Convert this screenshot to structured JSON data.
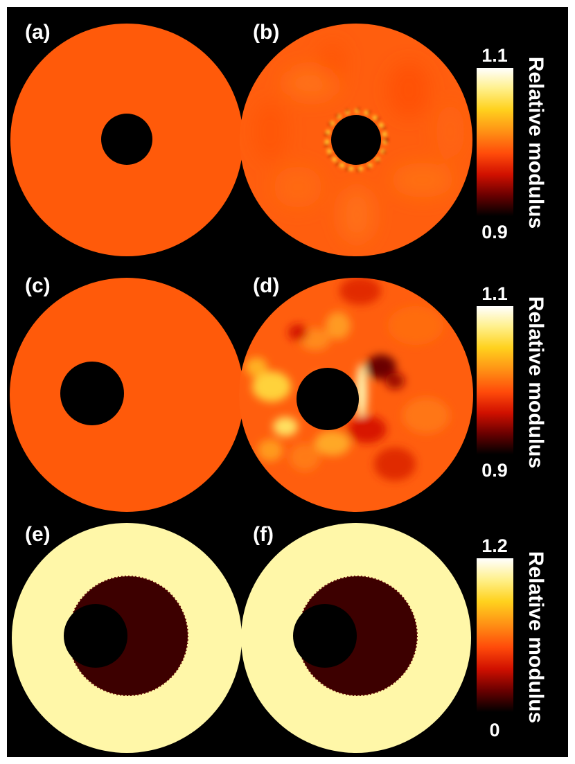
{
  "panels": [
    {
      "id": "a",
      "label": "(a)"
    },
    {
      "id": "b",
      "label": "(b)"
    },
    {
      "id": "c",
      "label": "(c)"
    },
    {
      "id": "d",
      "label": "(d)"
    },
    {
      "id": "e",
      "label": "(e)"
    },
    {
      "id": "f",
      "label": "(f)"
    }
  ],
  "colorbars": [
    {
      "row": 1,
      "max": "1.1",
      "min": "0.9",
      "title": "Relative modulus"
    },
    {
      "row": 2,
      "max": "1.1",
      "min": "0.9",
      "title": "Relative modulus"
    },
    {
      "row": 3,
      "max": "1.2",
      "min": "0",
      "title": "Relative modulus"
    }
  ],
  "colors": {
    "background": "#000000",
    "uniform": "#ff5a0a",
    "stiff_shell": "#fff7a8",
    "soft_region": "#3d0000",
    "colormap": [
      "#ffffff",
      "#fff08a",
      "#ffd21e",
      "#ff8c14",
      "#ff4a0a",
      "#d01000",
      "#6a0000",
      "#000000"
    ]
  }
}
